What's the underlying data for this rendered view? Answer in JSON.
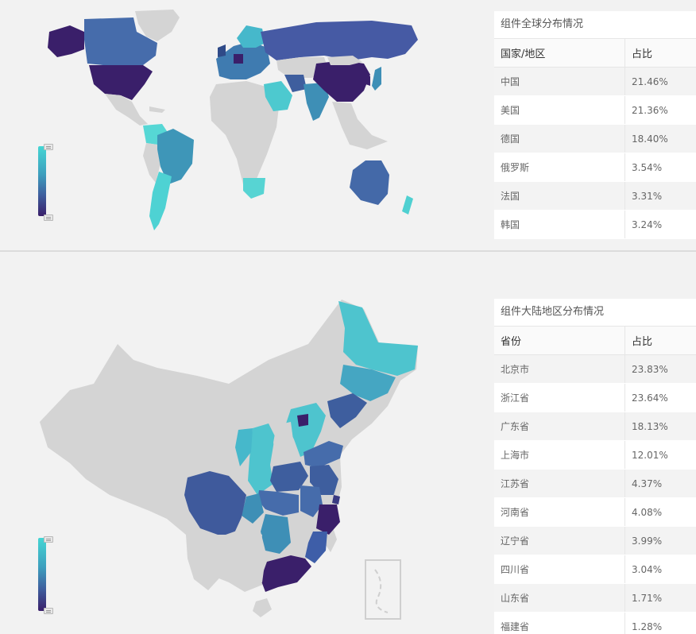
{
  "world_section": {
    "table_title": "组件全球分布情况",
    "col_country": "国家/地区",
    "col_ratio": "占比",
    "rows": [
      {
        "name": "中国",
        "value": "21.46%"
      },
      {
        "name": "美国",
        "value": "21.36%"
      },
      {
        "name": "德国",
        "value": "18.40%"
      },
      {
        "name": "俄罗斯",
        "value": "3.54%"
      },
      {
        "name": "法国",
        "value": "3.31%"
      },
      {
        "name": "韩国",
        "value": "3.24%"
      }
    ]
  },
  "china_section": {
    "table_title": "组件大陆地区分布情况",
    "col_province": "省份",
    "col_ratio": "占比",
    "rows": [
      {
        "name": "北京市",
        "value": "23.83%"
      },
      {
        "name": "浙江省",
        "value": "23.64%"
      },
      {
        "name": "广东省",
        "value": "18.13%"
      },
      {
        "name": "上海市",
        "value": "12.01%"
      },
      {
        "name": "江苏省",
        "value": "4.37%"
      },
      {
        "name": "河南省",
        "value": "4.08%"
      },
      {
        "name": "辽宁省",
        "value": "3.99%"
      },
      {
        "name": "四川省",
        "value": "3.04%"
      },
      {
        "name": "山东省",
        "value": "1.71%"
      },
      {
        "name": "福建省",
        "value": "1.28%"
      }
    ]
  },
  "colors": {
    "scale_high": "#45d6d4",
    "scale_mid": "#3d9fbe",
    "scale_low": "#3a1f6a",
    "no_data": "#d4d4d4"
  }
}
